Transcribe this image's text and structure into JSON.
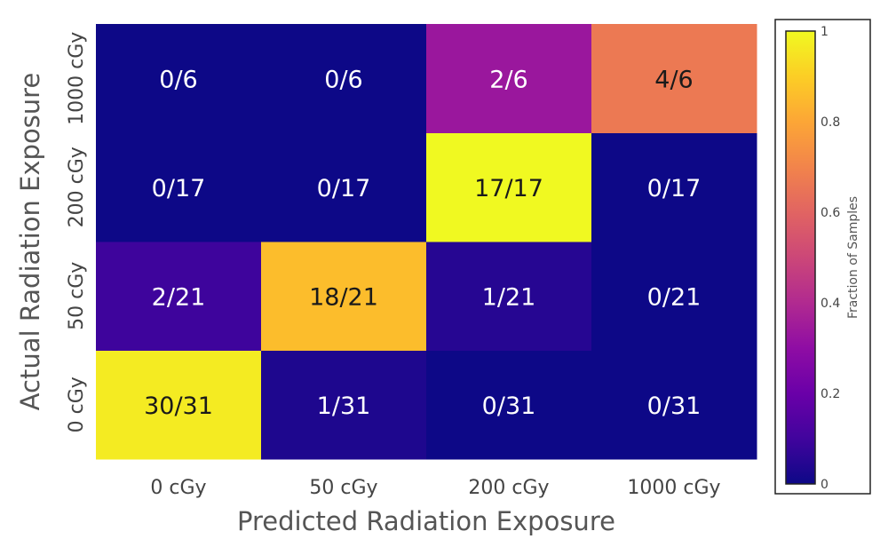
{
  "chart_data": {
    "type": "heatmap",
    "title": "",
    "xlabel": "Predicted Radiation Exposure",
    "ylabel": "Actual Radiation Exposure",
    "x_categories": [
      "0 cGy",
      "50 cGy",
      "200 cGy",
      "1000 cGy"
    ],
    "y_categories": [
      "0 cGy",
      "50 cGy",
      "200 cGy",
      "1000 cGy"
    ],
    "rows": [
      {
        "actual": "0 cGy",
        "labels": [
          "30/31",
          "1/31",
          "0/31",
          "0/31"
        ],
        "values": [
          0.968,
          0.032,
          0.0,
          0.0
        ]
      },
      {
        "actual": "50 cGy",
        "labels": [
          "2/21",
          "18/21",
          "1/21",
          "0/21"
        ],
        "values": [
          0.095,
          0.857,
          0.048,
          0.0
        ]
      },
      {
        "actual": "200 cGy",
        "labels": [
          "0/17",
          "0/17",
          "17/17",
          "0/17"
        ],
        "values": [
          0.0,
          0.0,
          1.0,
          0.0
        ]
      },
      {
        "actual": "1000 cGy",
        "labels": [
          "0/6",
          "0/6",
          "2/6",
          "4/6"
        ],
        "values": [
          0.0,
          0.0,
          0.333,
          0.667
        ]
      }
    ],
    "colorbar": {
      "title": "Fraction of Samples",
      "range": [
        0,
        1
      ],
      "ticks": [
        "0",
        "0.2",
        "0.4",
        "0.6",
        "0.8",
        "1"
      ],
      "colorscale": "plasma",
      "stops": [
        "#0d0887",
        "#41049d",
        "#6a00a8",
        "#8f0da4",
        "#b12a90",
        "#cc4778",
        "#e16462",
        "#f2844b",
        "#fca636",
        "#fcce25",
        "#f0f921"
      ]
    },
    "grid": false,
    "legend": "colorbar-right"
  }
}
